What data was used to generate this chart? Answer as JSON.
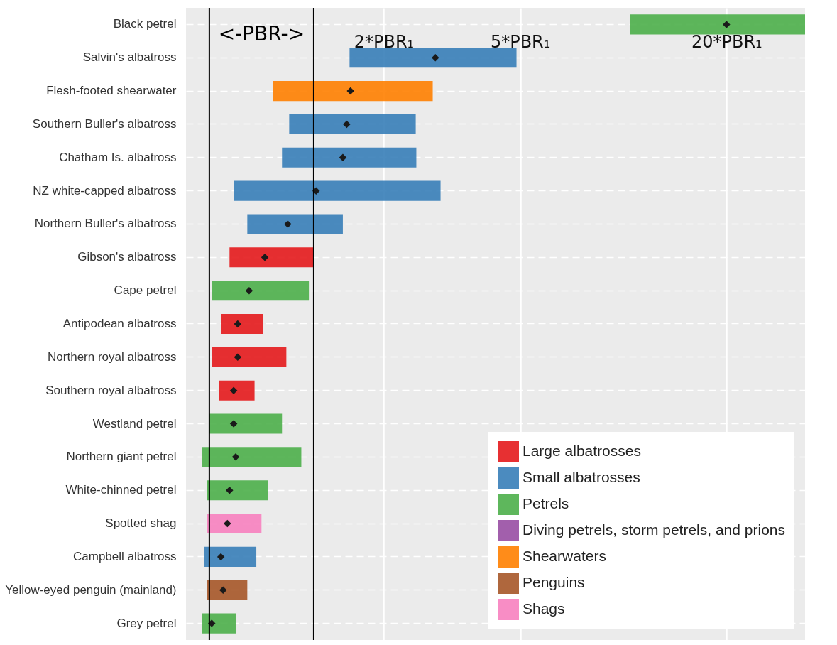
{
  "chart_data": {
    "type": "bar",
    "orientation": "horizontal",
    "categories": [
      "Black petrel",
      "Salvin's albatross",
      "Flesh-footed shearwater",
      "Southern Buller's albatross",
      "Chatham Is. albatross",
      "NZ white-capped albatross",
      "Northern Buller's albatross",
      "Gibson's albatross",
      "Cape petrel",
      "Antipodean albatross",
      "Northern royal albatross",
      "Southern royal albatross",
      "Westland petrel",
      "Northern giant petrel",
      "White-chinned petrel",
      "Spotted shag",
      "Campbell albatross",
      "Yellow-eyed penguin (mainland)",
      "Grey petrel"
    ],
    "series": [
      {
        "name": "Large albatrosses",
        "color": "#e41a1c",
        "base": [
          null,
          null,
          null,
          null,
          null,
          null,
          null,
          0.71,
          null,
          0.67,
          0.63,
          0.66,
          null,
          null,
          null,
          null,
          null,
          null,
          null
        ],
        "values": [
          null,
          null,
          null,
          null,
          null,
          null,
          null,
          0.54,
          null,
          0.22,
          0.41,
          0.18,
          null,
          null,
          null,
          null,
          null,
          null,
          null
        ]
      },
      {
        "name": "Small albatrosses",
        "color": "#377eb8",
        "base": [
          null,
          1.59,
          null,
          1.06,
          1.01,
          0.73,
          0.8,
          null,
          null,
          null,
          null,
          null,
          null,
          null,
          null,
          null,
          0.6,
          null,
          null
        ],
        "values": [
          null,
          3.29,
          null,
          1.42,
          1.48,
          2.2,
          0.72,
          null,
          null,
          null,
          null,
          null,
          null,
          null,
          null,
          null,
          0.25,
          null,
          null
        ]
      },
      {
        "name": "Petrels",
        "color": "#4daf4a",
        "base": [
          10.46,
          null,
          null,
          null,
          null,
          null,
          null,
          null,
          0.63,
          null,
          null,
          null,
          0.62,
          0.59,
          0.61,
          null,
          null,
          null,
          0.59
        ],
        "values": [
          23.44,
          null,
          null,
          null,
          null,
          null,
          null,
          null,
          0.58,
          null,
          null,
          null,
          0.39,
          0.56,
          0.31,
          null,
          null,
          null,
          0.15
        ]
      },
      {
        "name": "Diving petrels, storm petrels, and prions",
        "color": "#984ea3",
        "base": [
          null,
          null,
          null,
          null,
          null,
          null,
          null,
          null,
          null,
          null,
          null,
          null,
          null,
          null,
          null,
          null,
          null,
          null,
          null
        ],
        "values": [
          null,
          null,
          null,
          null,
          null,
          null,
          null,
          null,
          null,
          null,
          null,
          null,
          null,
          null,
          null,
          null,
          null,
          null,
          null
        ]
      },
      {
        "name": "Shearwaters",
        "color": "#ff7f00",
        "base": [
          null,
          null,
          0.95,
          null,
          null,
          null,
          null,
          null,
          null,
          null,
          null,
          null,
          null,
          null,
          null,
          null,
          null,
          null,
          null
        ],
        "values": [
          null,
          null,
          1.83,
          null,
          null,
          null,
          null,
          null,
          null,
          null,
          null,
          null,
          null,
          null,
          null,
          null,
          null,
          null,
          null
        ]
      },
      {
        "name": "Penguins",
        "color": "#a65628",
        "base": [
          null,
          null,
          null,
          null,
          null,
          null,
          null,
          null,
          null,
          null,
          null,
          null,
          null,
          null,
          null,
          null,
          null,
          0.61,
          null
        ],
        "values": [
          null,
          null,
          null,
          null,
          null,
          null,
          null,
          null,
          null,
          null,
          null,
          null,
          null,
          null,
          null,
          null,
          null,
          0.19,
          null
        ]
      },
      {
        "name": "Shags",
        "color": "#f781bf",
        "base": [
          null,
          null,
          null,
          null,
          null,
          null,
          null,
          null,
          null,
          null,
          null,
          null,
          null,
          null,
          null,
          0.61,
          null,
          null,
          null
        ],
        "values": [
          null,
          null,
          null,
          null,
          null,
          null,
          null,
          null,
          null,
          null,
          null,
          null,
          null,
          null,
          null,
          0.27,
          null,
          null,
          null
        ]
      },
      {
        "type": "scatter",
        "color": "#1a1a1a",
        "marker": "diamond",
        "values": [
          20,
          2.83,
          1.6,
          1.56,
          1.52,
          1.27,
          1.05,
          0.9,
          0.81,
          0.75,
          0.75,
          0.73,
          0.73,
          0.74,
          0.71,
          0.7,
          0.67,
          0.68,
          0.63
        ]
      }
    ],
    "xlim": [
      0.53,
      33.9
    ],
    "xticks": [
      {
        "value": 2,
        "label": "2*PBR₁"
      },
      {
        "value": 5,
        "label": "5*PBR₁"
      },
      {
        "value": 20,
        "label": "20*PBR₁"
      }
    ],
    "log": "x",
    "ref_lines": [
      {
        "axis": "x",
        "value": 0.62,
        "label": null,
        "color": "#000000"
      },
      {
        "axis": "x",
        "value": 1.25,
        "label": null,
        "color": "#000000"
      }
    ],
    "annotations": [
      "<-PBR->"
    ],
    "grid": true,
    "legend": "bottom right"
  }
}
